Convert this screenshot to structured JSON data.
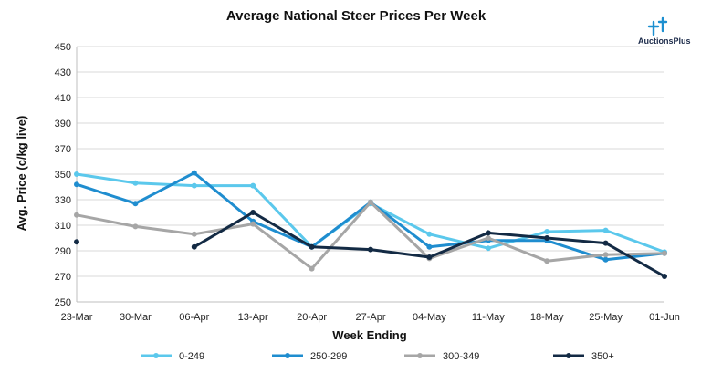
{
  "chart_data": {
    "type": "line",
    "title": "Average National Steer Prices Per Week",
    "xlabel": "Week Ending",
    "ylabel": "Avg. Price (c/kg live)",
    "ylim": [
      250,
      450
    ],
    "yticks": [
      250,
      270,
      290,
      310,
      330,
      350,
      370,
      390,
      410,
      430,
      450
    ],
    "grid": "horizontal",
    "legend_position": "bottom",
    "categories": [
      "23-Mar",
      "30-Mar",
      "06-Apr",
      "13-Apr",
      "20-Apr",
      "27-Apr",
      "04-May",
      "11-May",
      "18-May",
      "25-May",
      "01-Jun"
    ],
    "series": [
      {
        "name": "0-249",
        "color": "#5bc8ec",
        "values": [
          350,
          343,
          341,
          341,
          293,
          327,
          303,
          292,
          305,
          306,
          289
        ]
      },
      {
        "name": "250-299",
        "color": "#1f8dcf",
        "values": [
          342,
          327,
          351,
          313,
          293,
          328,
          293,
          298,
          298,
          283,
          288
        ]
      },
      {
        "name": "300-349",
        "color": "#a6a6a6",
        "values": [
          318,
          309,
          303,
          311,
          276,
          328,
          284,
          300,
          282,
          287,
          288
        ]
      },
      {
        "name": "350+",
        "color": "#132a44",
        "values": [
          297,
          null,
          293,
          320,
          293,
          291,
          285,
          304,
          300,
          296,
          270
        ]
      }
    ]
  },
  "logo": {
    "text": "AuctionsPlus"
  }
}
